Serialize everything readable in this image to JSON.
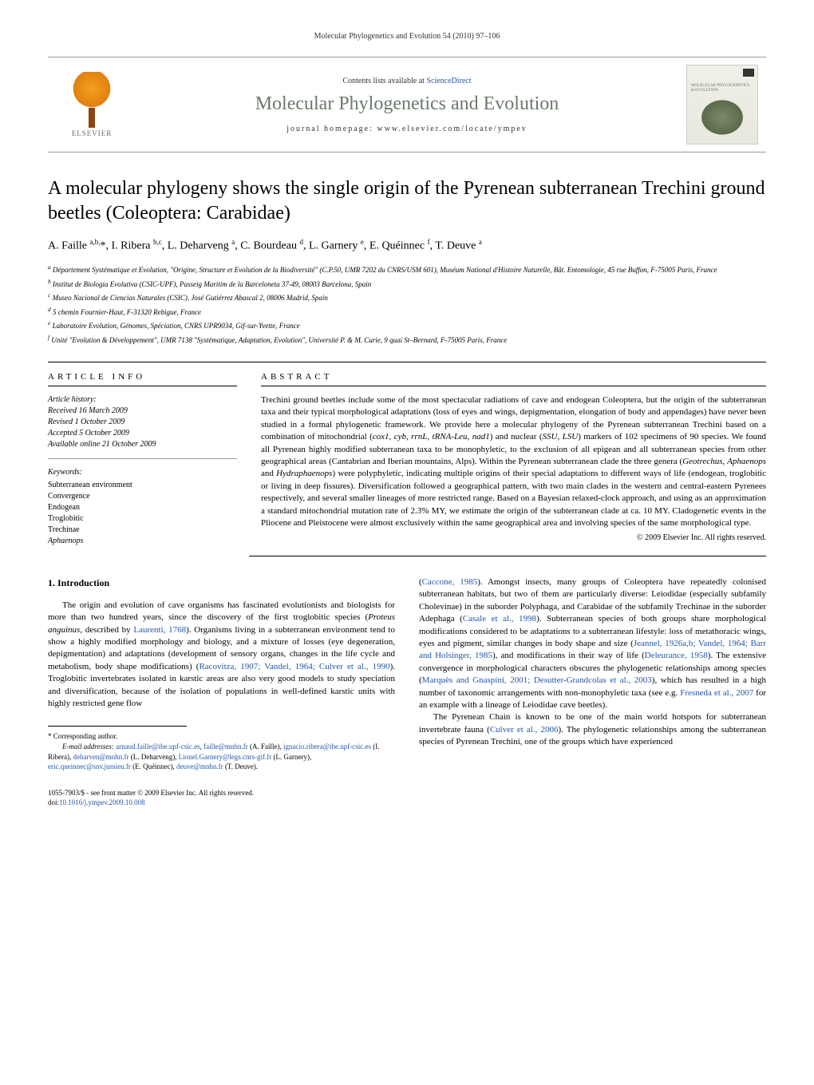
{
  "header": {
    "citation": "Molecular Phylogenetics and Evolution 54 (2010) 97–106"
  },
  "banner": {
    "elsevier_text": "ELSEVIER",
    "contents_prefix": "Contents lists available at ",
    "contents_link": "ScienceDirect",
    "journal_name": "Molecular Phylogenetics and Evolution",
    "homepage_prefix": "journal homepage: ",
    "homepage_url": "www.elsevier.com/locate/ympev",
    "logo_text": "MOLECULAR PHYLOGENETICS & EVOLUTION"
  },
  "title": "A molecular phylogeny shows the single origin of the Pyrenean subterranean Trechini ground beetles (Coleoptera: Carabidae)",
  "authors_html": "A. Faille <sup>a,b,</sup>*, I. Ribera <sup>b,c</sup>, L. Deharveng <sup>a</sup>, C. Bourdeau <sup>d</sup>, L. Garnery <sup>e</sup>, E. Quéinnec <sup>f</sup>, T. Deuve <sup>a</sup>",
  "affiliations": [
    "<sup>a</sup> Département Systématique et Evolution, \"Origine, Structure et Evolution de la Biodiversité\" (C.P.50, UMR 7202 du CNRS/USM 601), Muséum National d'Histoire Naturelle, Bât. Entomologie, 45 rue Buffon, F-75005 Paris, France",
    "<sup>b</sup> Institut de Biologia Evolutiva (CSIC-UPF), Passeig Maritim de la Barceloneta 37-49, 08003 Barcelona, Spain",
    "<sup>c</sup> Museo Nacional de Ciencias Naturales (CSIC), José Gutiérrez Abascal 2, 08006 Madrid, Spain",
    "<sup>d</sup> 5 chemin Fournier-Haut, F-31320 Rebigue, France",
    "<sup>e</sup> Laboratoire Evolution, Génomes, Spéciation, CNRS UPR9034, Gif-sur-Yvette, France",
    "<sup>f</sup> Unité \"Evolution & Développement\", UMR 7138 \"Systématique, Adaptation, Evolution\", Université P. & M. Curie, 9 quai St–Bernard, F-75005 Paris, France"
  ],
  "article_info": {
    "header": "ARTICLE INFO",
    "history_label": "Article history:",
    "history": [
      "Received 16 March 2009",
      "Revised 1 October 2009",
      "Accepted 5 October 2009",
      "Available online 21 October 2009"
    ],
    "keywords_label": "Keywords:",
    "keywords": [
      {
        "text": "Subterranean environment",
        "italic": false
      },
      {
        "text": "Convergence",
        "italic": false
      },
      {
        "text": "Endogean",
        "italic": false
      },
      {
        "text": "Troglobitic",
        "italic": false
      },
      {
        "text": "Trechinae",
        "italic": false
      },
      {
        "text": "Aphaenops",
        "italic": true
      }
    ]
  },
  "abstract": {
    "header": "ABSTRACT",
    "text_html": "Trechini ground beetles include some of the most spectacular radiations of cave and endogean Coleoptera, but the origin of the subterranean taxa and their typical morphological adaptations (loss of eyes and wings, depigmentation, elongation of body and appendages) have never been studied in a formal phylogenetic framework. We provide here a molecular phylogeny of the Pyrenean subterranean Trechini based on a combination of mitochondrial (<span class=\"italic\">cox1</span>, <span class=\"italic\">cyb</span>, <span class=\"italic\">rrnL</span>, <span class=\"italic\">tRNA-Leu</span>, <span class=\"italic\">nad1</span>) and nuclear (<span class=\"italic\">SSU</span>, <span class=\"italic\">LSU</span>) markers of 102 specimens of 90 species. We found all Pyrenean highly modified subterranean taxa to be monophyletic, to the exclusion of all epigean and all subterranean species from other geographical areas (Cantabrian and Iberian mountains, Alps). Within the Pyrenean subterranean clade the three genera (<span class=\"italic\">Geotrechus</span>, <span class=\"italic\">Aphaenops</span> and <span class=\"italic\">Hydraphaenops</span>) were polyphyletic, indicating multiple origins of their special adaptations to different ways of life (endogean, troglobitic or living in deep fissures). Diversification followed a geographical pattern, with two main clades in the western and central-eastern Pyrenees respectively, and several smaller lineages of more restricted range. Based on a Bayesian relaxed-clock approach, and using as an approximation a standard mitochondrial mutation rate of 2.3% MY, we estimate the origin of the subterranean clade at ca. 10 MY. Cladogenetic events in the Pliocene and Pleistocene were almost exclusively within the same geographical area and involving species of the same morphological type.",
    "copyright": "© 2009 Elsevier Inc. All rights reserved."
  },
  "intro": {
    "heading": "1. Introduction",
    "col1_html": "The origin and evolution of cave organisms has fascinated evolutionists and biologists for more than two hundred years, since the discovery of the first troglobitic species (<span class=\"italic\">Proteus anguinus</span>, described by <a href=\"#\">Laurenti, 1768</a>). Organisms living in a subterranean environment tend to show a highly modified morphology and biology, and a mixture of losses (eye degeneration, depigmentation) and adaptations (development of sensory organs, changes in the life cycle and metabolism, body shape modifications) (<a href=\"#\">Racovitza, 1907; Vandel, 1964; Culver et al., 1990</a>). Troglobitic invertebrates isolated in karstic areas are also very good models to study speciation and diversification, because of the isolation of populations in well-defined karstic units with highly restricted gene flow",
    "col2_p1_html": "(<a href=\"#\">Caccone, 1985</a>). Amongst insects, many groups of Coleoptera have repeatedly colonised subterranean habitats, but two of them are particularly diverse: Leiodidae (especially subfamily Cholevinae) in the suborder Polyphaga, and Carabidae of the subfamily Trechinae in the suborder Adephaga (<a href=\"#\">Casale et al., 1998</a>). Subterranean species of both groups share morphological modifications considered to be adaptations to a subterranean lifestyle: loss of metathoracic wings, eyes and pigment, similar changes in body shape and size (<a href=\"#\">Jeannel, 1926a,b; Vandel, 1964; Barr and Holsinger, 1985</a>), and modifications in their way of life (<a href=\"#\">Deleurance, 1958</a>). The extensive convergence in morphological characters obscures the phylogenetic relationships among species (<a href=\"#\">Marquès and Gnaspini, 2001; Desutter-Grandcolas et al., 2003</a>), which has resulted in a high number of taxonomic arrangements with non-monophyletic taxa (see e.g. <a href=\"#\">Fresneda et al., 2007</a> for an example with a lineage of Leiodidae cave beetles).",
    "col2_p2_html": "The Pyrenean Chain is known to be one of the main world hotspots for subterranean invertebrate fauna (<a href=\"#\">Culver et al., 2006</a>). The phylogenetic relationships among the subterranean species of Pyrenean Trechini, one of the groups which have experienced"
  },
  "footnotes": {
    "corresponding": "* Corresponding author.",
    "emails_html": "<span class=\"italic\">E-mail addresses:</span> <a href=\"#\">arnaud.faille@ibe.upf-csic.es</a>, <a href=\"#\">faille@mnhn.fr</a> (A. Faille), <a href=\"#\">ignacio.ribera@ibe.upf-csic.es</a> (I. Ribera), <a href=\"#\">deharven@mnhn.fr</a> (L. Deharveng), <a href=\"#\">Lionel.Garnery@legs.cnrs-gif.fr</a> (L. Garnery), <a href=\"#\">eric.queinnec@snv.jussieu.fr</a> (E. Quéinnec), <a href=\"#\">deuve@mnhn.fr</a> (T. Deuve)."
  },
  "footer": {
    "line1": "1055-7903/$ - see front matter © 2009 Elsevier Inc. All rights reserved.",
    "line2_prefix": "doi:",
    "doi": "10.1016/j.ympev.2009.10.008"
  }
}
